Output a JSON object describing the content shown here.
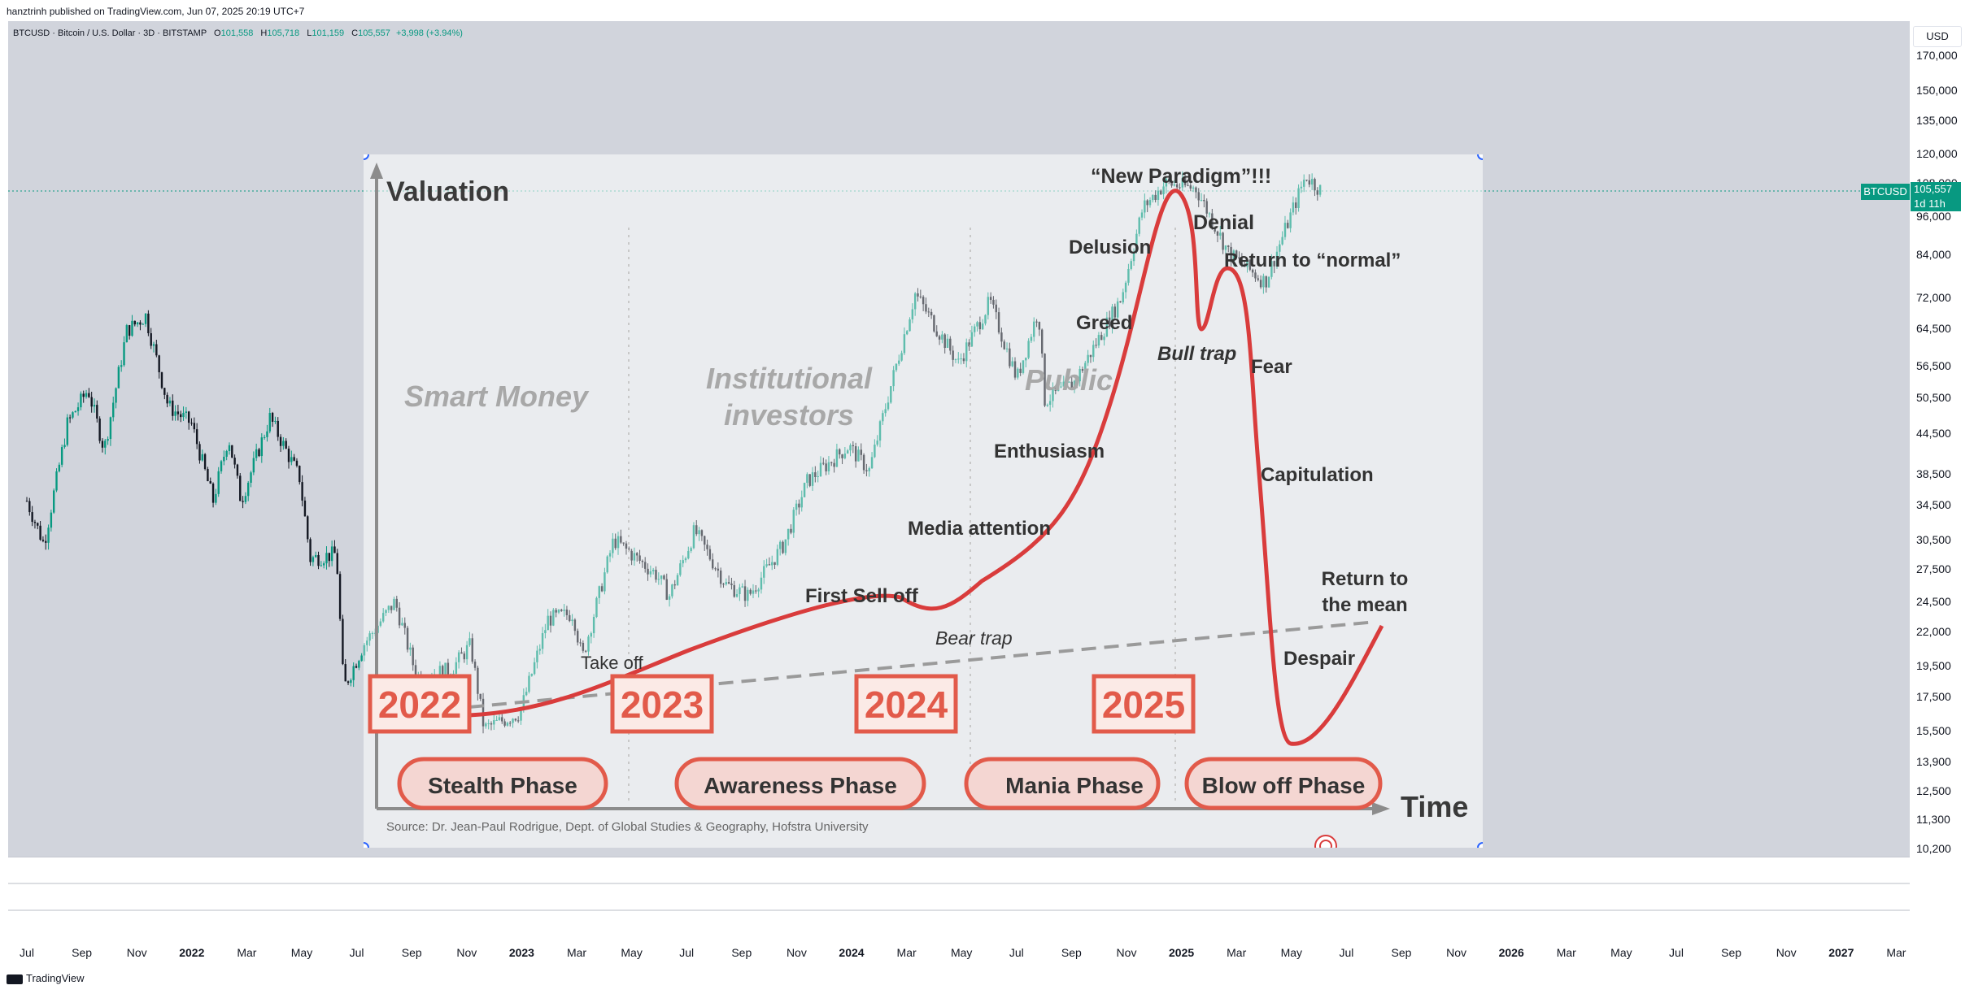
{
  "header": {
    "published": "hanztrinh published on TradingView.com, Jun 07, 2025 20:19 UTC+7"
  },
  "legend": {
    "symbol": "BTCUSD · Bitcoin / U.S. Dollar · 3D · BITSTAMP",
    "o_label": "O",
    "o": "101,558",
    "h_label": "H",
    "h": "105,718",
    "l_label": "L",
    "l": "101,159",
    "c_label": "C",
    "c": "105,557",
    "change": "+3,998 (+3.94%)"
  },
  "price_axis": {
    "currency": "USD",
    "ticks": [
      "170,000",
      "150,000",
      "135,000",
      "120,000",
      "108,000",
      "96,000",
      "84,000",
      "72,000",
      "64,500",
      "56,500",
      "50,500",
      "44,500",
      "38,500",
      "34,500",
      "30,500",
      "27,500",
      "24,500",
      "22,000",
      "19,500",
      "17,500",
      "15,500",
      "13,900",
      "12,500",
      "11,300",
      "10,200"
    ],
    "last_price": "105,557",
    "countdown": "1d 11h",
    "symbol_tag": "BTCUSD"
  },
  "time_axis": {
    "ticks": [
      "Jul",
      "Sep",
      "Nov",
      "2022",
      "Mar",
      "May",
      "Jul",
      "Sep",
      "Nov",
      "2023",
      "Mar",
      "May",
      "Jul",
      "Sep",
      "Nov",
      "2024",
      "Mar",
      "May",
      "Jul",
      "Sep",
      "Nov",
      "2025",
      "Mar",
      "May",
      "Jul",
      "Sep",
      "Nov",
      "2026",
      "Mar",
      "May",
      "Jul",
      "Sep",
      "Nov",
      "2027",
      "Mar"
    ],
    "year_ticks": [
      "2022",
      "2023",
      "2024",
      "2025",
      "2026",
      "2027"
    ]
  },
  "footer": {
    "brand": "TradingView"
  },
  "colors": {
    "up": "#089981",
    "down": "#131722",
    "cycle_curve": "#d93c3c",
    "year_box": "#e25a4a",
    "phase_fill": "#f4d6d2",
    "background": "#d1d4dc"
  },
  "infographic": {
    "y_axis_title": "Valuation",
    "x_axis_title": "Time",
    "source": "Source: Dr. Jean-Paul Rodrigue, Dept. of Global Studies & Geography, Hofstra University",
    "groups": [
      "Smart Money",
      "Institutional",
      "investors",
      "Public"
    ],
    "years": [
      "2022",
      "2023",
      "2024",
      "2025"
    ],
    "phases": [
      "Stealth Phase",
      "Awareness Phase",
      "Mania Phase",
      "Blow off Phase"
    ],
    "labels": {
      "take_off": "Take off",
      "first_sell_off": "First Sell off",
      "bear_trap": "Bear trap",
      "media_attention": "Media attention",
      "enthusiasm": "Enthusiasm",
      "greed": "Greed",
      "delusion": "Delusion",
      "new_paradigm": "“New Paradigm”!!!",
      "denial": "Denial",
      "return_to_normal": "Return to “normal”",
      "bull_trap": "Bull trap",
      "fear": "Fear",
      "capitulation": "Capitulation",
      "return_to_the": "Return to",
      "the_mean": "the mean",
      "despair": "Despair"
    }
  },
  "chart_data": {
    "type": "candlestick",
    "title": "",
    "xlabel": "",
    "ylabel": "",
    "y_scale": "log",
    "ylim": [
      10200,
      170000
    ],
    "grid": false,
    "last": {
      "open": 101558,
      "high": 105718,
      "low": 101159,
      "close": 105557
    },
    "price_path": [
      {
        "t": "2021-07-01",
        "p": 35000
      },
      {
        "t": "2021-07-20",
        "p": 30000
      },
      {
        "t": "2021-08-15",
        "p": 46000
      },
      {
        "t": "2021-09-07",
        "p": 52000
      },
      {
        "t": "2021-09-25",
        "p": 42000
      },
      {
        "t": "2021-10-20",
        "p": 64000
      },
      {
        "t": "2021-11-10",
        "p": 67500
      },
      {
        "t": "2021-12-05",
        "p": 49000
      },
      {
        "t": "2021-12-31",
        "p": 46000
      },
      {
        "t": "2022-01-24",
        "p": 35000
      },
      {
        "t": "2022-02-10",
        "p": 44000
      },
      {
        "t": "2022-02-24",
        "p": 35000
      },
      {
        "t": "2022-03-28",
        "p": 47000
      },
      {
        "t": "2022-04-30",
        "p": 38000
      },
      {
        "t": "2022-05-12",
        "p": 28500
      },
      {
        "t": "2022-06-10",
        "p": 29000
      },
      {
        "t": "2022-06-18",
        "p": 18000
      },
      {
        "t": "2022-07-10",
        "p": 21000
      },
      {
        "t": "2022-08-14",
        "p": 24500
      },
      {
        "t": "2022-09-07",
        "p": 18800
      },
      {
        "t": "2022-10-15",
        "p": 19200
      },
      {
        "t": "2022-11-06",
        "p": 21000
      },
      {
        "t": "2022-11-21",
        "p": 15600
      },
      {
        "t": "2022-12-31",
        "p": 16500
      },
      {
        "t": "2023-01-31",
        "p": 23000
      },
      {
        "t": "2023-02-28",
        "p": 23500
      },
      {
        "t": "2023-03-10",
        "p": 20000
      },
      {
        "t": "2023-04-14",
        "p": 30500
      },
      {
        "t": "2023-05-31",
        "p": 27000
      },
      {
        "t": "2023-06-15",
        "p": 25000
      },
      {
        "t": "2023-07-13",
        "p": 31500
      },
      {
        "t": "2023-08-17",
        "p": 26000
      },
      {
        "t": "2023-09-11",
        "p": 25000
      },
      {
        "t": "2023-10-20",
        "p": 30000
      },
      {
        "t": "2023-11-15",
        "p": 37500
      },
      {
        "t": "2023-12-31",
        "p": 42500
      },
      {
        "t": "2024-01-23",
        "p": 39000
      },
      {
        "t": "2024-02-15",
        "p": 52000
      },
      {
        "t": "2024-03-14",
        "p": 73000
      },
      {
        "t": "2024-05-01",
        "p": 57000
      },
      {
        "t": "2024-06-05",
        "p": 71000
      },
      {
        "t": "2024-07-05",
        "p": 54000
      },
      {
        "t": "2024-07-29",
        "p": 69000
      },
      {
        "t": "2024-08-05",
        "p": 50000
      },
      {
        "t": "2024-09-06",
        "p": 53000
      },
      {
        "t": "2024-10-29",
        "p": 72000
      },
      {
        "t": "2024-11-22",
        "p": 99000
      },
      {
        "t": "2024-12-17",
        "p": 108000
      },
      {
        "t": "2025-01-20",
        "p": 106000
      },
      {
        "t": "2025-02-26",
        "p": 84000
      },
      {
        "t": "2025-04-07",
        "p": 76000
      },
      {
        "t": "2025-05-22",
        "p": 111000
      },
      {
        "t": "2025-06-07",
        "p": 105557
      }
    ]
  }
}
